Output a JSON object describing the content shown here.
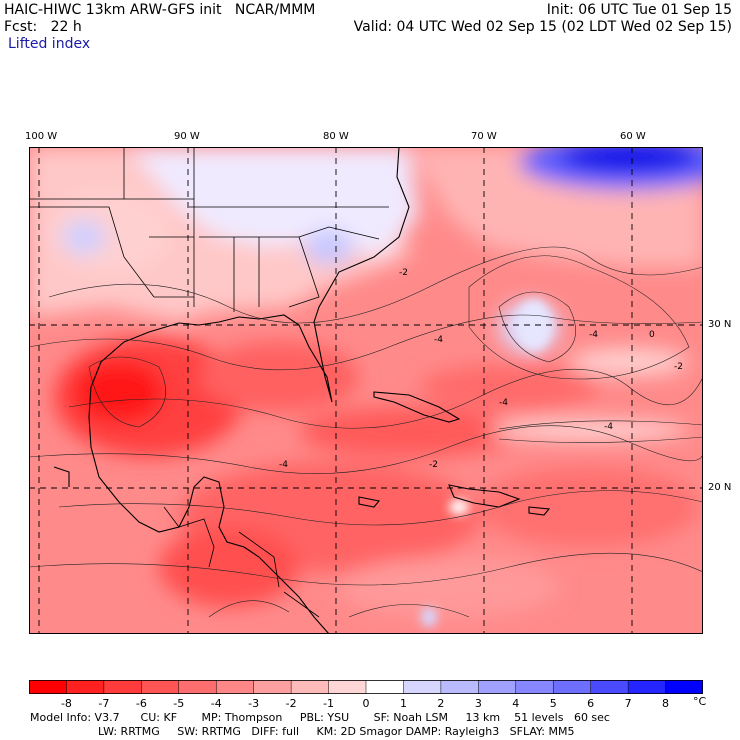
{
  "header": {
    "title": "HAIC-HIWC 13km ARW-GFS init   NCAR/MMM",
    "forecast": "Fcst:   22 h",
    "init": "Init: 06 UTC Tue 01 Sep 15",
    "valid": "Valid: 04 UTC Wed 02 Sep 15 (02 LDT Wed 02 Sep 15)",
    "field": "Lifted index"
  },
  "map": {
    "lon_labels": [
      "100 W",
      "90 W",
      "80 W",
      "70 W",
      "60 W"
    ],
    "lat_labels": [
      "30 N",
      "20 N"
    ],
    "lon_range": [
      -100,
      -55
    ],
    "lat_range": [
      10.5,
      39.5
    ],
    "contour_labels": [
      "-2",
      "-4",
      "-4",
      "-4",
      "-2",
      "-4",
      "0",
      "-2",
      "-4"
    ]
  },
  "colorbar": {
    "labels": [
      "-8",
      "-7",
      "-6",
      "-5",
      "-4",
      "-3",
      "-2",
      "-1",
      "0",
      "1",
      "2",
      "3",
      "4",
      "5",
      "6",
      "7",
      "8"
    ],
    "unit": "°C",
    "colors": [
      "#ff0000",
      "#ff2020",
      "#ff3b3b",
      "#ff5555",
      "#ff6e6e",
      "#ff8787",
      "#ffa0a0",
      "#ffbaba",
      "#ffd6d6",
      "#ffffff",
      "#d6d6ff",
      "#babaff",
      "#a0a0ff",
      "#8787ff",
      "#6e6eff",
      "#4a4aff",
      "#2525ff",
      "#0000ff"
    ]
  },
  "footer": {
    "line1": "Model Info: V3.7      CU: KF       MP: Thompson     PBL: YSU       SF: Noah LSM     13 km    51 levels   60 sec",
    "line2": "LW: RRTMG     SW: RRTMG   DIFF: full     KM: 2D Smagor DAMP: Rayleigh3   SFLAY: MM5"
  }
}
